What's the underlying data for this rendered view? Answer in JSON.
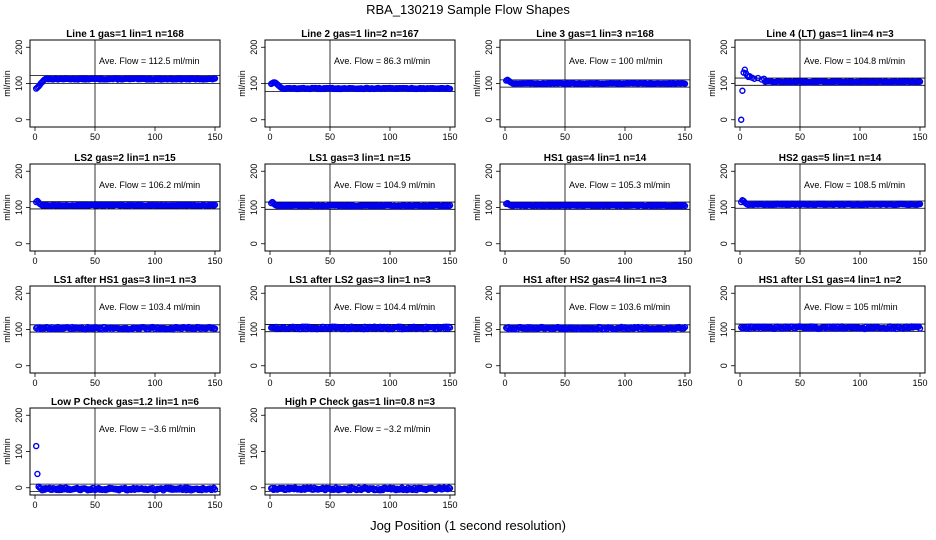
{
  "figure": {
    "title": "RBA_130219  Sample Flow Shapes",
    "xlabel": "Jog Position (1 second resolution)"
  },
  "chart_data": [
    {
      "type": "scatter",
      "title": "Line 1 gas=1 lin=1 n=168",
      "ylabel": "ml/min",
      "annotation": "Ave. Flow = 112.5  ml/min",
      "xlim": [
        0,
        150
      ],
      "ylim": [
        -20,
        220
      ],
      "xticks": [
        0,
        50,
        100,
        150
      ],
      "yticks": [
        0,
        100,
        200
      ],
      "hlines": [
        100,
        122
      ],
      "vline": 50,
      "mean": 112.5,
      "startup": [
        [
          1,
          86
        ],
        [
          2,
          89
        ],
        [
          3,
          92
        ],
        [
          4,
          96
        ],
        [
          5,
          101
        ],
        [
          6,
          104
        ],
        [
          7,
          108
        ],
        [
          8,
          111
        ],
        [
          9,
          113
        ],
        [
          10,
          114
        ]
      ]
    },
    {
      "type": "scatter",
      "title": "Line 2 gas=1 lin=2 n=167",
      "ylabel": "ml/min",
      "annotation": "Ave. Flow = 86.3  ml/min",
      "xlim": [
        0,
        150
      ],
      "ylim": [
        -20,
        220
      ],
      "xticks": [
        0,
        50,
        100,
        150
      ],
      "yticks": [
        0,
        100,
        200
      ],
      "hlines": [
        78,
        100
      ],
      "vline": 50,
      "mean": 86.3,
      "startup": [
        [
          1,
          99
        ],
        [
          2,
          101
        ],
        [
          3,
          103
        ],
        [
          4,
          103
        ],
        [
          5,
          101
        ],
        [
          6,
          98
        ],
        [
          7,
          95
        ],
        [
          8,
          92
        ],
        [
          9,
          89
        ],
        [
          10,
          87
        ]
      ]
    },
    {
      "type": "scatter",
      "title": "Line 3 gas=1 lin=3 n=168",
      "ylabel": "ml/min",
      "annotation": "Ave. Flow = 100  ml/min",
      "xlim": [
        0,
        150
      ],
      "ylim": [
        -20,
        220
      ],
      "xticks": [
        0,
        50,
        100,
        150
      ],
      "yticks": [
        0,
        100,
        200
      ],
      "hlines": [
        90,
        110
      ],
      "vline": 50,
      "mean": 100,
      "startup": [
        [
          1,
          108
        ],
        [
          2,
          110
        ],
        [
          3,
          108
        ],
        [
          4,
          105
        ],
        [
          5,
          103
        ],
        [
          6,
          101
        ]
      ]
    },
    {
      "type": "scatter",
      "title": "Line 4 (LT) gas=1 lin=4 n=3",
      "ylabel": "ml/min",
      "annotation": "Ave. Flow = 104.8  ml/min",
      "xlim": [
        0,
        150
      ],
      "ylim": [
        -20,
        220
      ],
      "xticks": [
        0,
        50,
        100,
        150
      ],
      "yticks": [
        0,
        100,
        200
      ],
      "hlines": [
        95,
        115
      ],
      "vline": 50,
      "mean": 104.8,
      "startup": [
        [
          1,
          0
        ],
        [
          2,
          80
        ],
        [
          3,
          130
        ],
        [
          4,
          138
        ],
        [
          5,
          128
        ],
        [
          6,
          122
        ],
        [
          7,
          118
        ],
        [
          8,
          120
        ],
        [
          10,
          116
        ],
        [
          12,
          113
        ],
        [
          15,
          115
        ],
        [
          18,
          111
        ],
        [
          20,
          113
        ]
      ]
    },
    {
      "type": "scatter",
      "title": "LS2 gas=2 lin=1 n=15",
      "ylabel": "ml/min",
      "annotation": "Ave. Flow = 106.2  ml/min",
      "xlim": [
        0,
        150
      ],
      "ylim": [
        -20,
        220
      ],
      "xticks": [
        0,
        50,
        100,
        150
      ],
      "yticks": [
        0,
        100,
        200
      ],
      "hlines": [
        96,
        116
      ],
      "vline": 50,
      "mean": 106.2,
      "startup": [
        [
          1,
          115
        ],
        [
          2,
          118
        ],
        [
          3,
          114
        ],
        [
          4,
          110
        ],
        [
          5,
          108
        ]
      ]
    },
    {
      "type": "scatter",
      "title": "LS1 gas=3 lin=1 n=15",
      "ylabel": "ml/min",
      "annotation": "Ave. Flow = 104.9  ml/min",
      "xlim": [
        0,
        150
      ],
      "ylim": [
        -20,
        220
      ],
      "xticks": [
        0,
        50,
        100,
        150
      ],
      "yticks": [
        0,
        100,
        200
      ],
      "hlines": [
        95,
        115
      ],
      "vline": 50,
      "mean": 104.9,
      "startup": [
        [
          1,
          112
        ],
        [
          2,
          115
        ],
        [
          3,
          112
        ],
        [
          4,
          108
        ],
        [
          5,
          106
        ]
      ]
    },
    {
      "type": "scatter",
      "title": "HS1 gas=4 lin=1 n=14",
      "ylabel": "ml/min",
      "annotation": "Ave. Flow = 105.3  ml/min",
      "xlim": [
        0,
        150
      ],
      "ylim": [
        -20,
        220
      ],
      "xticks": [
        0,
        50,
        100,
        150
      ],
      "yticks": [
        0,
        100,
        200
      ],
      "hlines": [
        95,
        115
      ],
      "vline": 50,
      "mean": 105.3,
      "startup": [
        [
          1,
          110
        ],
        [
          2,
          112
        ],
        [
          3,
          109
        ],
        [
          4,
          107
        ]
      ]
    },
    {
      "type": "scatter",
      "title": "HS2 gas=5 lin=1 n=14",
      "ylabel": "ml/min",
      "annotation": "Ave. Flow = 108.5  ml/min",
      "xlim": [
        0,
        150
      ],
      "ylim": [
        -20,
        220
      ],
      "xticks": [
        0,
        50,
        100,
        150
      ],
      "yticks": [
        0,
        100,
        200
      ],
      "hlines": [
        98,
        118
      ],
      "vline": 50,
      "mean": 108.5,
      "startup": [
        [
          1,
          115
        ],
        [
          2,
          120
        ],
        [
          3,
          118
        ],
        [
          4,
          114
        ],
        [
          5,
          111
        ]
      ]
    },
    {
      "type": "scatter",
      "title": "LS1 after HS1 gas=3 lin=1 n=3",
      "ylabel": "ml/min",
      "annotation": "Ave. Flow = 103.4  ml/min",
      "xlim": [
        0,
        150
      ],
      "ylim": [
        -20,
        220
      ],
      "xticks": [
        0,
        50,
        100,
        150
      ],
      "yticks": [
        0,
        100,
        200
      ],
      "hlines": [
        93,
        113
      ],
      "vline": 50,
      "mean": 103.4,
      "startup": []
    },
    {
      "type": "scatter",
      "title": "LS1 after LS2 gas=3 lin=1 n=3",
      "ylabel": "ml/min",
      "annotation": "Ave. Flow = 104.4  ml/min",
      "xlim": [
        0,
        150
      ],
      "ylim": [
        -20,
        220
      ],
      "xticks": [
        0,
        50,
        100,
        150
      ],
      "yticks": [
        0,
        100,
        200
      ],
      "hlines": [
        94,
        114
      ],
      "vline": 50,
      "mean": 104.4,
      "startup": []
    },
    {
      "type": "scatter",
      "title": "HS1 after HS2 gas=4 lin=1 n=3",
      "ylabel": "ml/min",
      "annotation": "Ave. Flow = 103.6  ml/min",
      "xlim": [
        0,
        150
      ],
      "ylim": [
        -20,
        220
      ],
      "xticks": [
        0,
        50,
        100,
        150
      ],
      "yticks": [
        0,
        100,
        200
      ],
      "hlines": [
        93,
        113
      ],
      "vline": 50,
      "mean": 103.6,
      "startup": []
    },
    {
      "type": "scatter",
      "title": "HS1 after LS1 gas=4 lin=1 n=2",
      "ylabel": "ml/min",
      "annotation": "Ave. Flow = 105  ml/min",
      "xlim": [
        0,
        150
      ],
      "ylim": [
        -20,
        220
      ],
      "xticks": [
        0,
        50,
        100,
        150
      ],
      "yticks": [
        0,
        100,
        200
      ],
      "hlines": [
        95,
        115
      ],
      "vline": 50,
      "mean": 105,
      "startup": []
    },
    {
      "type": "scatter",
      "title": "Low P Check gas=1.2 lin=1 n=6",
      "ylabel": "ml/min",
      "annotation": "Ave. Flow = −3.6  ml/min",
      "xlim": [
        0,
        150
      ],
      "ylim": [
        -20,
        220
      ],
      "xticks": [
        0,
        50,
        100,
        150
      ],
      "yticks": [
        0,
        100,
        200
      ],
      "hlines": [
        -10,
        10
      ],
      "vline": 50,
      "mean": -3.6,
      "startup": [
        [
          1,
          115
        ],
        [
          2,
          38
        ],
        [
          3,
          3
        ],
        [
          4,
          0
        ]
      ]
    },
    {
      "type": "scatter",
      "title": "High P Check gas=1 lin=0.8 n=3",
      "ylabel": "ml/min",
      "annotation": "Ave. Flow = −3.2  ml/min",
      "xlim": [
        0,
        150
      ],
      "ylim": [
        -20,
        220
      ],
      "xticks": [
        0,
        50,
        100,
        150
      ],
      "yticks": [
        0,
        100,
        200
      ],
      "hlines": [
        -10,
        10
      ],
      "vline": 50,
      "mean": -3.2,
      "startup": []
    }
  ],
  "style": {
    "point_color": "#0000ee",
    "axis_color": "#000000",
    "background": "#ffffff"
  }
}
